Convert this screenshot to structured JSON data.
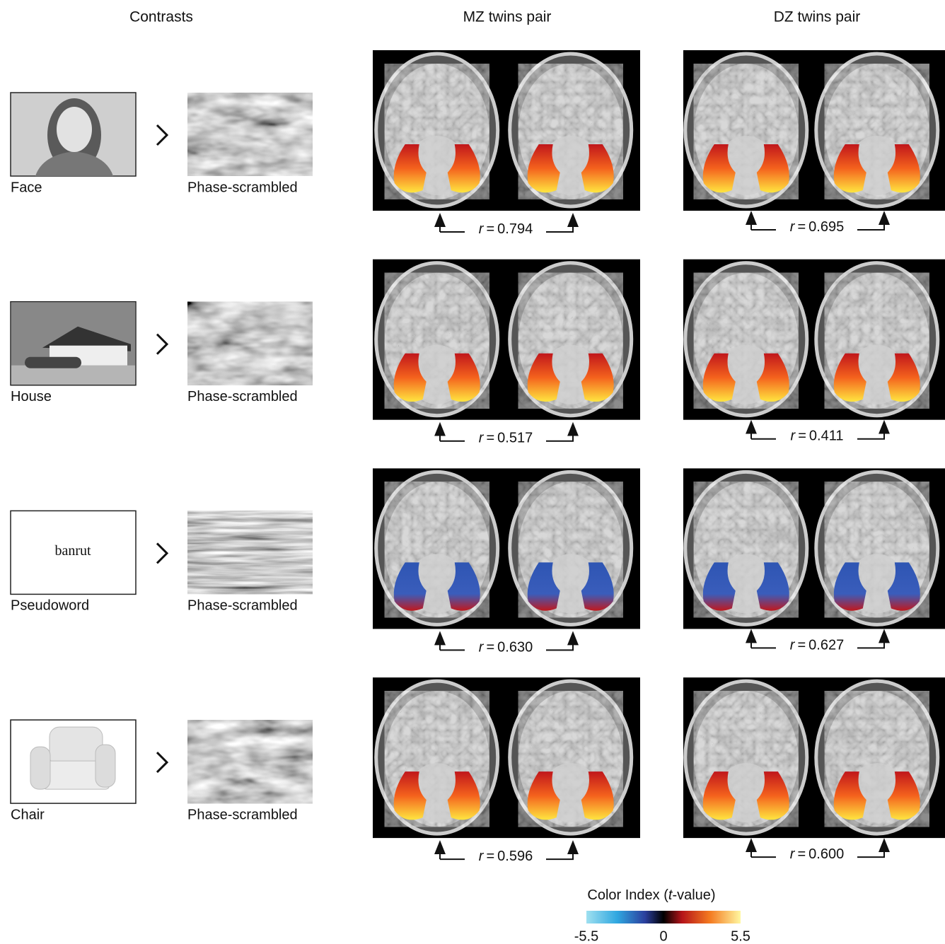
{
  "columns": [
    "Contrasts",
    "MZ twins pair",
    "DZ twins pair"
  ],
  "r_symbol": "r",
  "r_sign": "=",
  "rows": [
    {
      "stimulus": "Face",
      "control": "Phase-scrambled",
      "mz_r": "0.794",
      "dz_r": "0.695"
    },
    {
      "stimulus": "House",
      "control": "Phase-scrambled",
      "mz_r": "0.517",
      "dz_r": "0.411"
    },
    {
      "stimulus": "Pseudoword",
      "stimulus_text": "banrut",
      "control": "Phase-scrambled",
      "mz_r": "0.630",
      "dz_r": "0.627"
    },
    {
      "stimulus": "Chair",
      "control": "Phase-scrambled",
      "mz_r": "0.596",
      "dz_r": "0.600"
    }
  ],
  "colorbar": {
    "title": "Color Index (",
    "title_var": "t",
    "title_end": "-value)",
    "lim": [
      -5.5,
      5.5
    ],
    "ticks": [
      -5.5,
      0,
      5.5
    ]
  }
}
